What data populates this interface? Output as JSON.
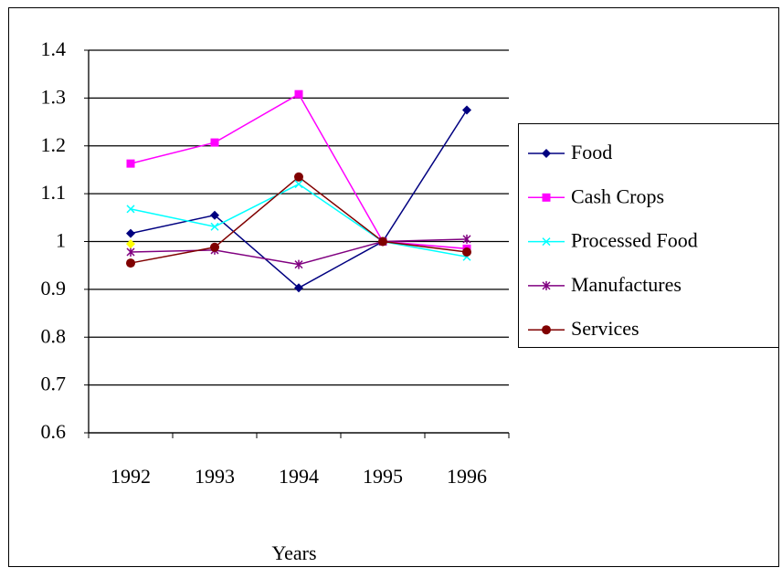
{
  "chart_data": {
    "type": "line",
    "x_label": "Years",
    "categories": [
      "1992",
      "1993",
      "1994",
      "1995",
      "1996"
    ],
    "series": [
      {
        "name": "Food",
        "color": "#000080",
        "marker": "diamond",
        "values": [
          1.017,
          1.055,
          0.903,
          1.0,
          1.275
        ]
      },
      {
        "name": "Cash Crops",
        "color": "#ff00ff",
        "marker": "square",
        "values": [
          1.163,
          1.207,
          1.308,
          1.0,
          0.985
        ]
      },
      {
        "name": "Processed Food",
        "color": "#00ffff",
        "marker": "x",
        "values": [
          1.068,
          1.031,
          1.12,
          1.0,
          0.968
        ]
      },
      {
        "name": "Manufactures",
        "color": "#800080",
        "marker": "star",
        "values": [
          0.978,
          0.982,
          0.952,
          1.0,
          1.005
        ]
      },
      {
        "name": "Services",
        "color": "#800000",
        "marker": "circle",
        "values": [
          0.955,
          0.988,
          1.135,
          1.0,
          0.978
        ]
      },
      {
        "color": "#ffff00",
        "marker": "diamond",
        "values": [
          0.995,
          null,
          null,
          null,
          null
        ]
      }
    ],
    "ylim": [
      0.6,
      1.4
    ],
    "yticks": [
      0.6,
      0.7,
      0.8,
      0.9,
      1,
      1.1,
      1.2,
      1.3,
      1.4
    ],
    "grid": true,
    "legend": "right"
  }
}
